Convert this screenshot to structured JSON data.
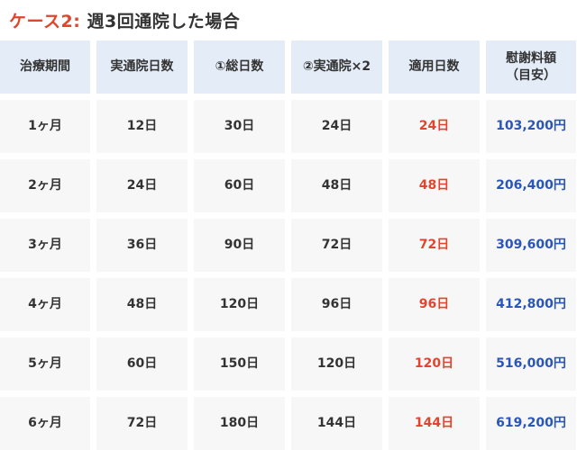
{
  "title": {
    "case": "ケース2:",
    "text": "週3回通院した場合"
  },
  "headers": [
    "治療期間",
    "実通院日数",
    "①総日数",
    "②実通院×2",
    "適用日数",
    "慰謝料額\n（目安）"
  ],
  "rows": [
    [
      "1ヶ月",
      "12日",
      "30日",
      "24日",
      "24日",
      "103,200円"
    ],
    [
      "2ヶ月",
      "24日",
      "60日",
      "48日",
      "48日",
      "206,400円"
    ],
    [
      "3ヶ月",
      "36日",
      "90日",
      "72日",
      "72日",
      "309,600円"
    ],
    [
      "4ヶ月",
      "48日",
      "120日",
      "96日",
      "96日",
      "412,800円"
    ],
    [
      "5ヶ月",
      "60日",
      "150日",
      "120日",
      "120日",
      "516,000円"
    ],
    [
      "6ヶ月",
      "72日",
      "180日",
      "144日",
      "144日",
      "619,200円"
    ]
  ],
  "colors": {
    "accent_red": "#e0452e",
    "accent_blue": "#2a56b8",
    "header_bg": "#e4ecf8",
    "cell_bg": "#f7f7f7"
  }
}
